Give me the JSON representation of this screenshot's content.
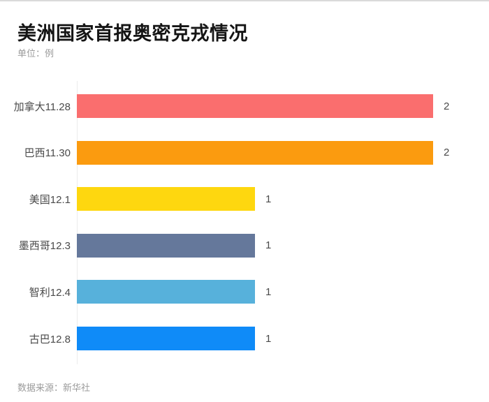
{
  "page": {
    "title": "美洲国家首报奥密克戎情况",
    "unit_label": "单位：例",
    "source_note": "数据来源：新华社"
  },
  "chart_data": {
    "type": "bar",
    "orientation": "horizontal",
    "title": "美洲国家首报奥密克戎情况",
    "unit": "单位：例",
    "source": "数据来源：新华社",
    "categories": [
      "加拿大11.28",
      "巴西11.30",
      "美国12.1",
      "墨西哥12.3",
      "智利12.4",
      "古巴12.8"
    ],
    "values": [
      2,
      2,
      1,
      1,
      1,
      1
    ],
    "colors": [
      "#FA6E6E",
      "#FB9B0F",
      "#FED70F",
      "#65789B",
      "#57B1DB",
      "#0F8BF8"
    ],
    "xlim": [
      0,
      2
    ],
    "value_labels_shown": true,
    "grid": false,
    "legend": "none",
    "axis_line_color": "#ececec",
    "background_color": "#ffffff"
  }
}
